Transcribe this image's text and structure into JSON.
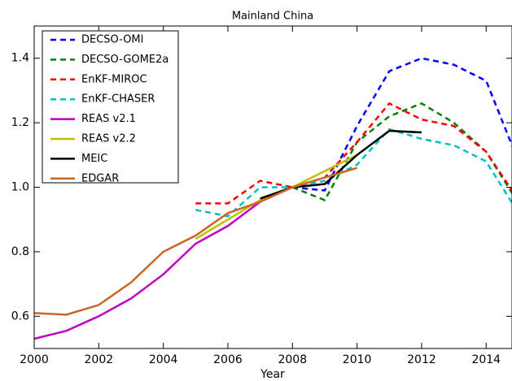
{
  "chart_data": {
    "type": "line",
    "title": "Mainland China",
    "xlabel": "Year",
    "xlim": [
      2000,
      2014.8
    ],
    "xticks": [
      2000,
      2002,
      2004,
      2006,
      2008,
      2010,
      2012,
      2014
    ],
    "ylim": [
      0.5,
      1.5
    ],
    "yticks": [
      0.6,
      0.8,
      {
        "value": 1,
        "label": "1.0"
      },
      1.2,
      1.4
    ],
    "grid": false,
    "legend": "upper left",
    "series": [
      {
        "name": "DECSO-OMI",
        "color": "#0000ff",
        "linestyle": "dashed",
        "x": [
          2008,
          2009,
          2010,
          2011,
          2012,
          2013,
          2014,
          2015
        ],
        "values": [
          1.0,
          0.99,
          1.19,
          1.36,
          1.4,
          1.38,
          1.33,
          1.08
        ]
      },
      {
        "name": "DECSO-GOME2a",
        "color": "#008000",
        "linestyle": "dashed",
        "x": [
          2008,
          2009,
          2010,
          2011,
          2012,
          2013,
          2014,
          2015
        ],
        "values": [
          1.0,
          0.96,
          1.14,
          1.22,
          1.26,
          1.2,
          1.11,
          0.95
        ]
      },
      {
        "name": "EnKF-MIROC",
        "color": "#ff0000",
        "linestyle": "dashed",
        "x": [
          2005,
          2006,
          2007,
          2008,
          2009,
          2010,
          2011,
          2012,
          2013,
          2014,
          2015
        ],
        "values": [
          0.95,
          0.95,
          1.02,
          1.0,
          1.03,
          1.14,
          1.26,
          1.21,
          1.19,
          1.11,
          0.96
        ]
      },
      {
        "name": "EnKF-CHASER",
        "color": "#00bfbf",
        "linestyle": "dashed",
        "x": [
          2005,
          2006,
          2007,
          2008,
          2009,
          2010,
          2011,
          2012,
          2013,
          2014,
          2015
        ],
        "values": [
          0.93,
          0.91,
          1.0,
          1.0,
          1.02,
          1.07,
          1.18,
          1.15,
          1.13,
          1.08,
          0.92
        ]
      },
      {
        "name": "REAS v2.1",
        "color": "#bf00bf",
        "linestyle": "solid",
        "x": [
          2000,
          2001,
          2002,
          2003,
          2004,
          2005,
          2006,
          2007,
          2008
        ],
        "values": [
          0.53,
          0.555,
          0.6,
          0.655,
          0.73,
          0.825,
          0.88,
          0.955,
          1.0
        ]
      },
      {
        "name": "REAS v2.2",
        "color": "#bfbf00",
        "linestyle": "solid",
        "x": [
          2005,
          2006,
          2007,
          2008,
          2009,
          2010
        ],
        "values": [
          0.84,
          0.9,
          0.96,
          1.0,
          1.05,
          1.1
        ]
      },
      {
        "name": "MEIC",
        "color": "#000000",
        "linestyle": "solid",
        "x": [
          2007,
          2008,
          2009,
          2010,
          2011,
          2012
        ],
        "values": [
          0.965,
          1.0,
          1.01,
          1.1,
          1.175,
          1.17
        ]
      },
      {
        "name": "EDGAR",
        "color": "#cc6622",
        "linestyle": "solid",
        "x": [
          2000,
          2001,
          2002,
          2003,
          2004,
          2005,
          2006,
          2007,
          2008,
          2009,
          2010
        ],
        "values": [
          0.61,
          0.605,
          0.635,
          0.705,
          0.8,
          0.85,
          0.92,
          0.955,
          1.0,
          1.03,
          1.06
        ]
      }
    ]
  }
}
